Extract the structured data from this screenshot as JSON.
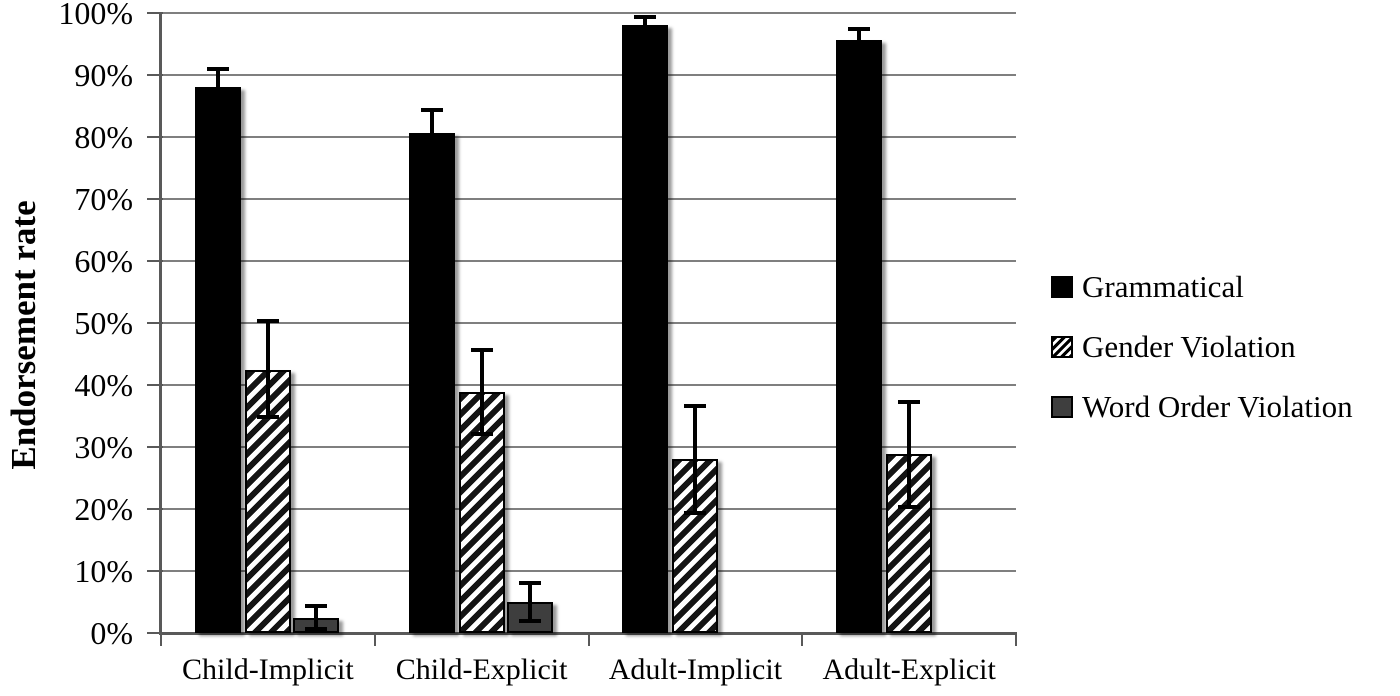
{
  "chart_data": {
    "type": "bar",
    "title": "",
    "xlabel": "",
    "ylabel": "Endorsement rate",
    "ylim": [
      0,
      100
    ],
    "ytick_step": 10,
    "ytick_labels": [
      "0%",
      "10%",
      "20%",
      "30%",
      "40%",
      "50%",
      "60%",
      "70%",
      "80%",
      "90%",
      "100%"
    ],
    "grid": "horizontal",
    "legend_position": "right",
    "categories": [
      "Child-Implicit",
      "Child-Explicit",
      "Adult-Implicit",
      "Adult-Explicit"
    ],
    "series": [
      {
        "name": "Grammatical",
        "pattern": "solid-black",
        "values": [
          88,
          80.7,
          98,
          95.6
        ],
        "err_low": [
          85,
          77,
          96.6,
          93.8
        ],
        "err_high": [
          91,
          84.4,
          99.4,
          97.4
        ]
      },
      {
        "name": "Gender Violation",
        "pattern": "diagonal-hatch",
        "values": [
          42.5,
          38.8,
          28,
          28.8
        ],
        "err_low": [
          34.9,
          32.1,
          19.4,
          20.4
        ],
        "err_high": [
          50.3,
          45.6,
          36.6,
          37.2
        ]
      },
      {
        "name": "Word Order Violation",
        "pattern": "solid-darkgray",
        "values": [
          2.5,
          5,
          0,
          0
        ],
        "err_low": [
          0.7,
          2,
          null,
          null
        ],
        "err_high": [
          4.3,
          8,
          null,
          null
        ]
      }
    ]
  },
  "colors": {
    "bar_black": "#000000",
    "bar_gray": "#3e3e3e",
    "gridline": "#7f7f7f",
    "axis": "#595959",
    "text": "#000000",
    "background": "#ffffff"
  }
}
